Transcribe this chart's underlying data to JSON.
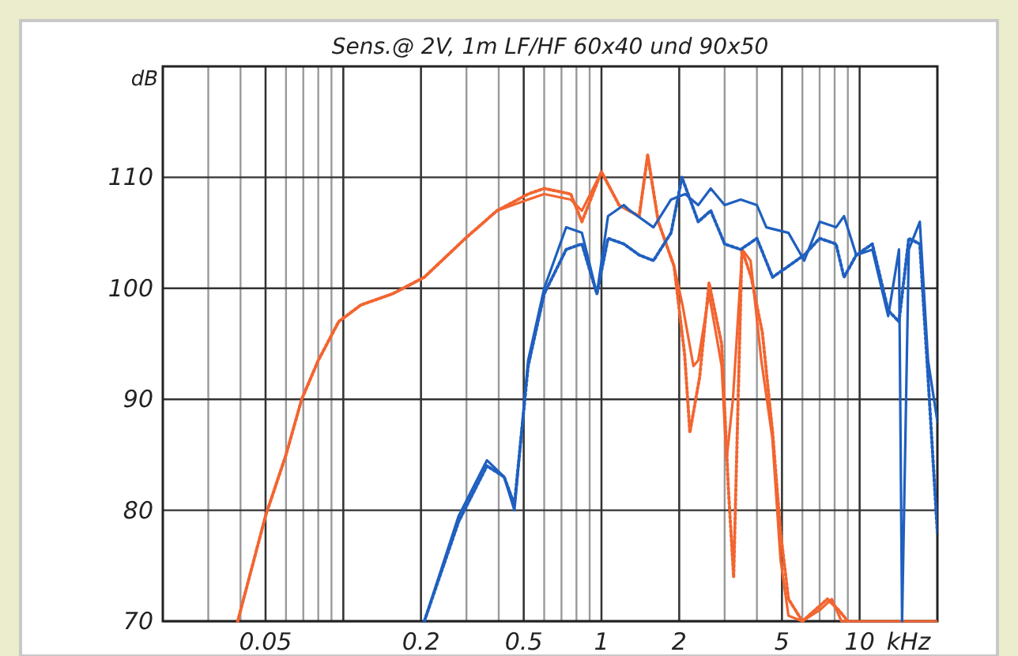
{
  "chart_data": {
    "type": "line",
    "title": "Sens.@ 2V, 1m LF/HF 60x40 und 90x50",
    "ylabel": "dB",
    "xlabel": "kHz",
    "log": "x",
    "grid": true,
    "line_style": "solid",
    "xlim": [
      0.02,
      20
    ],
    "xticks": [
      0.05,
      {
        "value": 0.1,
        "label": null
      },
      0.2,
      0.5,
      1,
      2,
      5,
      10
    ],
    "ylim": [
      70,
      120
    ],
    "yticks": [
      70,
      80,
      90,
      100,
      110
    ],
    "series": [
      {
        "color": "#f26530",
        "x": [
          0.039,
          0.05,
          0.06,
          0.069,
          0.08,
          0.096,
          0.117,
          0.155,
          0.206,
          0.297,
          0.394,
          0.52,
          0.6,
          0.76,
          0.84,
          1.0,
          1.17,
          1.4,
          1.51,
          1.66,
          1.91,
          2.06,
          2.27,
          2.37,
          2.61,
          2.92,
          3.05,
          3.23,
          3.51,
          3.78,
          4.16,
          4.59,
          4.94,
          5.3,
          6,
          7,
          7.8,
          8.5,
          9.5,
          20
        ],
        "values": [
          70,
          79.5,
          85,
          90,
          93.5,
          97,
          98.5,
          99.5,
          101,
          104.5,
          107,
          108,
          108.5,
          108,
          107,
          110.5,
          107.5,
          106.5,
          112,
          106,
          102,
          98.5,
          93,
          93.5,
          99.5,
          93,
          84.5,
          90,
          103.5,
          102.5,
          93.5,
          86.5,
          75.5,
          70.5,
          70,
          71,
          72,
          70,
          70,
          70
        ]
      },
      {
        "color": "#f26530",
        "line_style": "dotted",
        "x": [
          0.039,
          0.05,
          0.06,
          0.069,
          0.08,
          0.096,
          0.117,
          0.155,
          0.206,
          0.297,
          0.394,
          0.52,
          0.6,
          0.76,
          0.84,
          1.0,
          1.17,
          1.4,
          1.51,
          1.66,
          1.91,
          2.1,
          2.2,
          2.4,
          2.61,
          2.92,
          3.1,
          3.25,
          3.5,
          3.8,
          4.2,
          4.6,
          4.94,
          5.3,
          6,
          7.5,
          8.3,
          9
        ],
        "values": [
          70,
          79.5,
          85,
          90,
          93.5,
          97,
          98.5,
          99.5,
          101,
          104.5,
          107,
          108.5,
          109,
          108.5,
          106,
          110.5,
          107.5,
          106.5,
          112,
          106,
          102,
          94,
          87,
          92,
          100.5,
          95,
          82,
          74,
          103.5,
          101,
          96,
          87,
          78,
          72,
          70,
          72,
          71,
          70
        ]
      },
      {
        "color": "#1f5fbf",
        "x": [
          0.206,
          0.28,
          0.36,
          0.42,
          0.46,
          0.52,
          0.6,
          0.73,
          0.84,
          0.96,
          1.06,
          1.22,
          1.29,
          1.59,
          1.86,
          2.11,
          2.37,
          2.65,
          3.0,
          3.46,
          4.0,
          4.35,
          5.3,
          6.1,
          7.0,
          8.1,
          8.7,
          9.7,
          11.2,
          12.9,
          14.2,
          14.6,
          15.5,
          17.1,
          18.4,
          20
        ],
        "values": [
          70,
          79.5,
          84.5,
          83,
          80,
          93.5,
          100,
          105.5,
          105,
          99.5,
          106.5,
          107.5,
          107,
          105.5,
          108,
          108.5,
          107.5,
          109,
          107.5,
          108,
          107.5,
          105.5,
          105,
          102.5,
          106,
          105.5,
          106.5,
          103,
          103.5,
          97.5,
          103.5,
          70,
          103.5,
          106,
          93.5,
          88
        ]
      },
      {
        "color": "#1f5fbf",
        "line_style": "dotted",
        "x": [
          0.206,
          0.28,
          0.36,
          0.42,
          0.46,
          0.52,
          0.6,
          0.73,
          0.84,
          0.96,
          1.06,
          1.22,
          1.4,
          1.59,
          1.86,
          2.05,
          2.37,
          2.65,
          3.0,
          3.46,
          4.0,
          4.6,
          5.3,
          6.1,
          7.0,
          8.1,
          8.7,
          9.7,
          11.2,
          12.9,
          14.2,
          15.5,
          17.1,
          18.4,
          20
        ],
        "values": [
          70,
          79,
          84,
          83,
          80.5,
          93,
          99.5,
          103.5,
          104,
          99.5,
          104.5,
          104,
          103,
          102.5,
          105,
          110,
          106,
          107,
          104,
          103.5,
          104.5,
          101,
          102,
          103,
          104.5,
          104,
          101,
          103,
          104,
          98,
          97,
          104.5,
          104,
          92,
          78
        ]
      }
    ]
  }
}
